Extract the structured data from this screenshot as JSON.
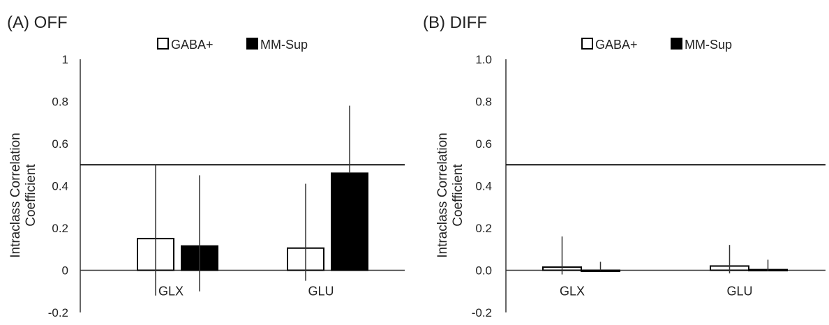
{
  "chart_data": [
    {
      "type": "bar",
      "title": "(A) OFF",
      "ylabel_lines": [
        "Intraclass Correlation",
        "Coefficient"
      ],
      "categories": [
        "GLX",
        "GLU"
      ],
      "ylim": [
        -0.2,
        1
      ],
      "yticks": [
        "-0.2",
        "0",
        "0.2",
        "0.4",
        "0.6",
        "0.8",
        "1"
      ],
      "reference_line": 0.5,
      "grid": false,
      "legend_position": "top",
      "series": [
        {
          "name": "GABA+",
          "values": [
            0.15,
            0.105
          ],
          "error_low": [
            -0.12,
            -0.05
          ],
          "error_high": [
            0.5,
            0.41
          ],
          "color": "#ffffff"
        },
        {
          "name": "MM-Sup",
          "values": [
            0.115,
            0.46
          ],
          "error_low": [
            -0.1,
            0.46
          ],
          "error_high": [
            0.45,
            0.78
          ],
          "color": "#000000"
        }
      ]
    },
    {
      "type": "bar",
      "title": "(B) DIFF",
      "ylabel_lines": [
        "Intraclass Correlation",
        "Coefficient"
      ],
      "categories": [
        "GLX",
        "GLU"
      ],
      "ylim": [
        -0.2,
        1
      ],
      "yticks": [
        "-0.2",
        "0.0",
        "0.2",
        "0.4",
        "0.6",
        "0.8",
        "1.0"
      ],
      "reference_line": 0.5,
      "grid": false,
      "legend_position": "top",
      "series": [
        {
          "name": "GABA+",
          "values": [
            0.015,
            0.02
          ],
          "error_low": [
            -0.02,
            -0.015
          ],
          "error_high": [
            0.16,
            0.12
          ],
          "color": "#ffffff"
        },
        {
          "name": "MM-Sup",
          "values": [
            0.0,
            0.003
          ],
          "error_low": [
            0.0,
            -0.005
          ],
          "error_high": [
            0.04,
            0.05
          ],
          "color": "#000000"
        }
      ]
    }
  ]
}
